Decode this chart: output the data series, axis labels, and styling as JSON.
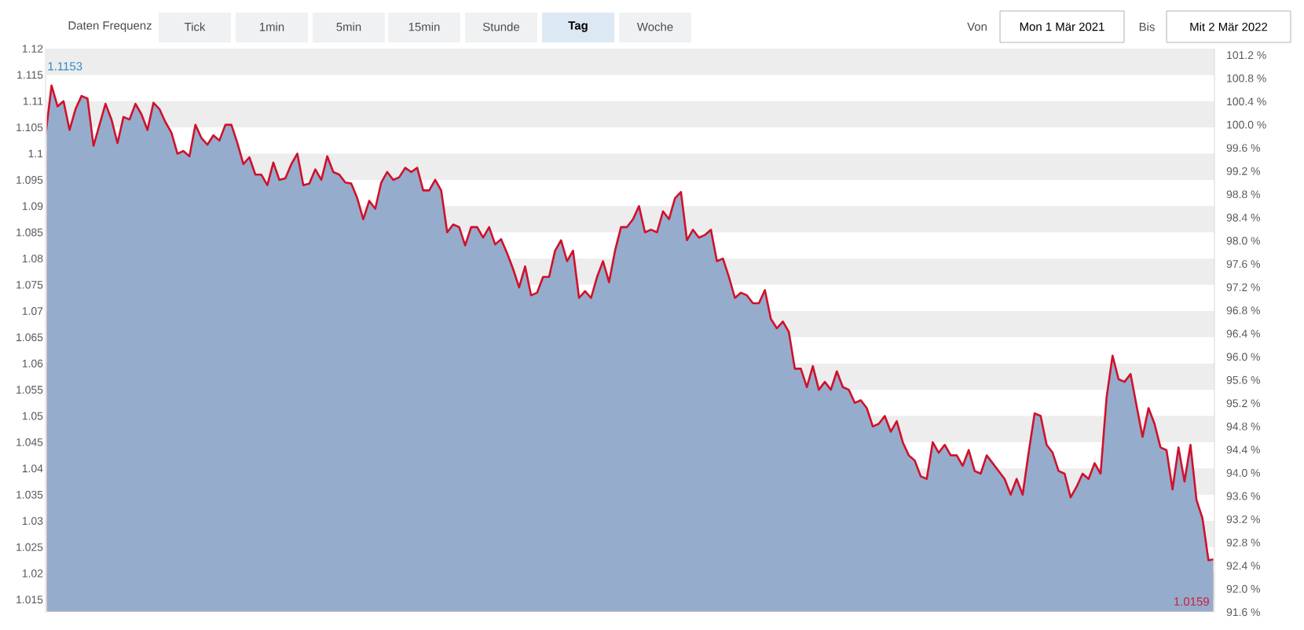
{
  "chart_data": {
    "type": "area",
    "categories": [
      null,
      null,
      null,
      null,
      null,
      null,
      null,
      null,
      null,
      null,
      null,
      null,
      null,
      null,
      null,
      null,
      null,
      null,
      null,
      null,
      null,
      null,
      null,
      null,
      null,
      null,
      null,
      null,
      null,
      null,
      null,
      null,
      null,
      null,
      null,
      null,
      null,
      null,
      null,
      null,
      null,
      null,
      null,
      null,
      null,
      null,
      null,
      null,
      null,
      null,
      null,
      null,
      null,
      null,
      null,
      null,
      null,
      null,
      null,
      null,
      null,
      null,
      null,
      null,
      null,
      null,
      null,
      null,
      null,
      null,
      null,
      null,
      null,
      null,
      null,
      null,
      null,
      null,
      null,
      null,
      null,
      null,
      null,
      null,
      null,
      null,
      null,
      null,
      null,
      null,
      null,
      null,
      null,
      null,
      null,
      null,
      null,
      null,
      null,
      null,
      null,
      null,
      null,
      null,
      null,
      null,
      null,
      null,
      null,
      null,
      null,
      null,
      null,
      null,
      null,
      null,
      null,
      null,
      null,
      null,
      null,
      null,
      null,
      null,
      null,
      null,
      null,
      null,
      null,
      null,
      null,
      null,
      null,
      null,
      null,
      null,
      null,
      null,
      null,
      null,
      null,
      null,
      null,
      null,
      null,
      null,
      null,
      null,
      null,
      null,
      null,
      null,
      null,
      null,
      null,
      null,
      null,
      null,
      null,
      null,
      null,
      null,
      null,
      null,
      null,
      null,
      null,
      null,
      null,
      null,
      null,
      null,
      null,
      null,
      null,
      null,
      null,
      null,
      null,
      null,
      null,
      null,
      null,
      null,
      null,
      null,
      null,
      null,
      null,
      null,
      null,
      null,
      null,
      null,
      null,
      null
    ],
    "series": [
      {
        "color": "#96accc",
        "values": [
          1.1035,
          1.113,
          1.109,
          1.11,
          1.1045,
          1.1085,
          1.111,
          1.1105,
          1.1015,
          1.1055,
          1.1095,
          1.1065,
          1.102,
          1.107,
          1.1065,
          1.1095,
          1.1075,
          1.1045,
          1.1097,
          1.1085,
          1.106,
          1.104,
          1.1,
          1.1005,
          1.0995,
          1.1055,
          1.103,
          1.1017,
          1.1035,
          1.1025,
          1.1055,
          1.1055,
          1.102,
          1.098,
          1.0993,
          1.096,
          1.096,
          1.094,
          1.0983,
          1.095,
          1.0953,
          1.098,
          1.1,
          1.094,
          1.0943,
          1.097,
          1.095,
          1.0995,
          1.0965,
          1.096,
          1.0945,
          1.0943,
          1.0915,
          1.0875,
          1.091,
          1.0895,
          1.0945,
          1.0965,
          1.095,
          1.0955,
          1.0973,
          1.0965,
          1.0973,
          1.093,
          1.093,
          1.095,
          1.093,
          1.085,
          1.0865,
          1.086,
          1.0825,
          1.086,
          1.086,
          1.084,
          1.086,
          1.0827,
          1.0837,
          1.081,
          1.078,
          1.0745,
          1.0785,
          1.073,
          1.0735,
          1.0765,
          1.0765,
          1.0815,
          1.0835,
          1.0795,
          1.0815,
          1.0725,
          1.0738,
          1.0725,
          1.0765,
          1.0795,
          1.0755,
          1.0815,
          1.086,
          1.086,
          1.0875,
          1.09,
          1.085,
          1.0855,
          1.085,
          1.089,
          1.0875,
          1.0915,
          1.0927,
          1.0835,
          1.0855,
          1.084,
          1.0845,
          1.0855,
          1.0795,
          1.08,
          1.0765,
          1.0725,
          1.0735,
          1.073,
          1.0715,
          1.0715,
          1.074,
          1.0685,
          1.0667,
          1.068,
          1.066,
          1.059,
          1.059,
          1.0555,
          1.0595,
          1.055,
          1.0565,
          1.055,
          1.0585,
          1.0555,
          1.055,
          1.0525,
          1.053,
          1.0515,
          1.048,
          1.0485,
          1.05,
          1.047,
          1.049,
          1.045,
          1.0425,
          1.0415,
          1.0385,
          1.038,
          1.045,
          1.043,
          1.0445,
          1.0425,
          1.0425,
          1.0405,
          1.0435,
          1.0395,
          1.039,
          1.0425,
          1.041,
          1.0395,
          1.038,
          1.035,
          1.038,
          1.035,
          1.043,
          1.0505,
          1.05,
          1.0445,
          1.043,
          1.0395,
          1.039,
          1.0345,
          1.0365,
          1.039,
          1.038,
          1.041,
          1.039,
          1.0535,
          1.0615,
          1.057,
          1.0565,
          1.058,
          1.052,
          1.046,
          1.0515,
          1.0485,
          1.044,
          1.0435,
          1.036,
          1.044,
          1.0375,
          1.0445,
          1.034,
          1.0305,
          1.0225,
          1.0227
        ]
      }
    ],
    "ylim": [
      1.0125,
      1.12
    ],
    "yticks": [
      1.015,
      1.02,
      1.025,
      1.03,
      1.035,
      1.04,
      1.045,
      1.05,
      1.055,
      1.06,
      1.065,
      1.07,
      1.075,
      1.08,
      1.085,
      1.09,
      1.095,
      1.1,
      1.105,
      1.11,
      1.115,
      1.12
    ],
    "y2lim": [
      91.59,
      101.31
    ],
    "y2ticks": [
      {
        "value": 91.6,
        "label": "91.6 %"
      },
      {
        "value": 92.0,
        "label": "92.0 %"
      },
      {
        "value": 92.4,
        "label": "92.4 %"
      },
      {
        "value": 92.8,
        "label": "92.8 %"
      },
      {
        "value": 93.2,
        "label": "93.2 %"
      },
      {
        "value": 93.6,
        "label": "93.6 %"
      },
      {
        "value": 94.0,
        "label": "94.0 %"
      },
      {
        "value": 94.4,
        "label": "94.4 %"
      },
      {
        "value": 94.8,
        "label": "94.8 %"
      },
      {
        "value": 95.2,
        "label": "95.2 %"
      },
      {
        "value": 95.6,
        "label": "95.6 %"
      },
      {
        "value": 96.0,
        "label": "96.0 %"
      },
      {
        "value": 96.4,
        "label": "96.4 %"
      },
      {
        "value": 96.8,
        "label": "96.8 %"
      },
      {
        "value": 97.2,
        "label": "97.2 %"
      },
      {
        "value": 97.6,
        "label": "97.6 %"
      },
      {
        "value": 98.0,
        "label": "98.0 %"
      },
      {
        "value": 98.4,
        "label": "98.4 %"
      },
      {
        "value": 98.8,
        "label": "98.8 %"
      },
      {
        "value": 99.2,
        "label": "99.2 %"
      },
      {
        "value": 99.6,
        "label": "99.6 %"
      },
      {
        "value": 100.0,
        "label": "100.0 %"
      },
      {
        "value": 100.4,
        "label": "100.4 %"
      },
      {
        "value": 100.8,
        "label": "100.8 %"
      },
      {
        "value": 101.2,
        "label": "101.2 %"
      }
    ],
    "bands": [
      {
        "axis": "y",
        "from": 1.015,
        "to": 1.02,
        "color": "#ededed"
      },
      {
        "axis": "y",
        "from": 1.025,
        "to": 1.03,
        "color": "#ededed"
      },
      {
        "axis": "y",
        "from": 1.035,
        "to": 1.04,
        "color": "#ededed"
      },
      {
        "axis": "y",
        "from": 1.045,
        "to": 1.05,
        "color": "#ededed"
      },
      {
        "axis": "y",
        "from": 1.055,
        "to": 1.06,
        "color": "#ededed"
      },
      {
        "axis": "y",
        "from": 1.065,
        "to": 1.07,
        "color": "#ededed"
      },
      {
        "axis": "y",
        "from": 1.075,
        "to": 1.08,
        "color": "#ededed"
      },
      {
        "axis": "y",
        "from": 1.085,
        "to": 1.09,
        "color": "#ededed"
      },
      {
        "axis": "y",
        "from": 1.095,
        "to": 1.1,
        "color": "#ededed"
      },
      {
        "axis": "y",
        "from": 1.105,
        "to": 1.11,
        "color": "#ededed"
      },
      {
        "axis": "y",
        "from": 1.115,
        "to": 1.12,
        "color": "#ededed"
      }
    ],
    "annotations": [
      "Daten Frequenz",
      "Tick",
      "1min",
      "5min",
      "15min",
      "Stunde",
      "Tag",
      "Woche",
      "Von",
      "Mon 1 Mär 2021",
      "Bis",
      "Mit 2 Mär 2022",
      "1.1153",
      "1.0159"
    ]
  }
}
